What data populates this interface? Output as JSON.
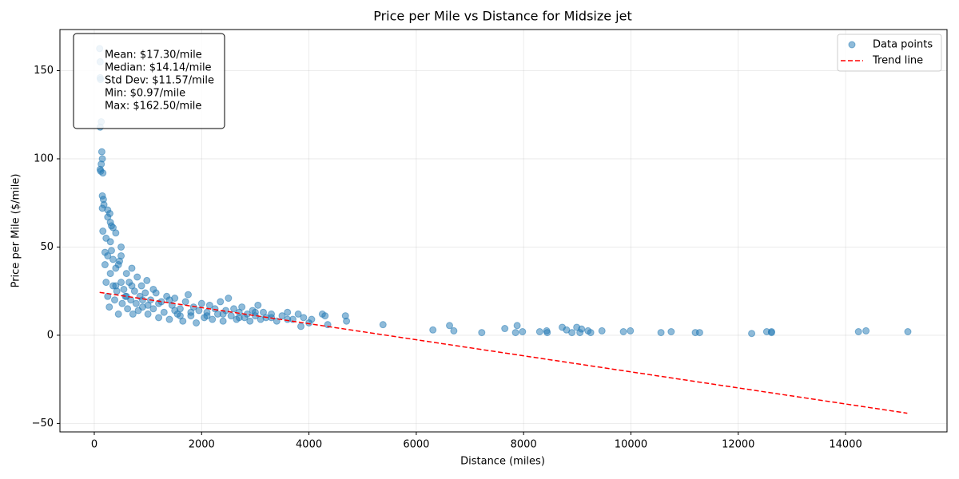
{
  "chart_data": {
    "type": "scatter",
    "title": "Price per Mile vs Distance for Midsize jet",
    "x_label": "Distance (miles)",
    "y_label": "Price per Mile ($/mile)",
    "xlim": [
      -640,
      15890
    ],
    "ylim": [
      -54.8,
      173.3
    ],
    "xticks": [
      0,
      2000,
      4000,
      6000,
      8000,
      10000,
      12000,
      14000
    ],
    "yticks": [
      {
        "value": -50,
        "label": "−50"
      },
      0,
      50,
      100,
      150
    ],
    "grid": true,
    "legend": "upper right",
    "stats_box": [
      "Mean: $17.30/mile",
      "Median: $14.14/mile",
      "Std Dev: $11.57/mile",
      "Min: $0.97/mile",
      "Max: $162.50/mile"
    ],
    "series": [
      {
        "name": "Data points",
        "type": "scatter",
        "color": "#1f77b4",
        "x": [
          100,
          110,
          110,
          115,
          130,
          110,
          140,
          150,
          130,
          110,
          120,
          160,
          150,
          170,
          150,
          180,
          250,
          290,
          250,
          300,
          320,
          350,
          160,
          400,
          220,
          300,
          500,
          200,
          250,
          350,
          450,
          200,
          220,
          250,
          280,
          300,
          320,
          350,
          380,
          400,
          420,
          450,
          470,
          500,
          520,
          550,
          580,
          600,
          620,
          650,
          680,
          700,
          720,
          750,
          780,
          800,
          820,
          850,
          880,
          900,
          950,
          980,
          1000,
          1050,
          1100,
          1150,
          1200,
          1250,
          1300,
          1350,
          1400,
          1450,
          1500,
          1550,
          1600,
          1650,
          1700,
          1750,
          1800,
          1850,
          1900,
          1950,
          2000,
          2050,
          2100,
          2150,
          2200,
          2250,
          2300,
          2350,
          2400,
          2450,
          2500,
          2550,
          2600,
          2650,
          2700,
          2750,
          2800,
          2850,
          2900,
          2950,
          3000,
          3050,
          3100,
          3150,
          3200,
          3300,
          3400,
          3500,
          3600,
          3700,
          3800,
          3850,
          3900,
          4000,
          4050,
          4250,
          4300,
          4350,
          4680,
          4700,
          400,
          600,
          900,
          1200,
          1500,
          1800,
          2100,
          2400,
          2700,
          3000,
          3300,
          3600,
          500,
          700,
          1100,
          1400,
          1600,
          1000,
          5380,
          6310,
          6620,
          6700,
          7220,
          7650,
          7850,
          7880,
          7980,
          8300,
          8430,
          8440,
          8720,
          8800,
          8900,
          8990,
          9050,
          9080,
          9200,
          9250,
          9460,
          9860,
          9990,
          10560,
          10750,
          11200,
          11280,
          12250,
          12530,
          12620,
          12620,
          14240,
          14380,
          15160
        ],
        "values": [
          162.5,
          155,
          146,
          145,
          121,
          118,
          104,
          100,
          97,
          94,
          93,
          92,
          79,
          77,
          72,
          74,
          71,
          69,
          67,
          64,
          62,
          61,
          59,
          58,
          55,
          53,
          50,
          47,
          45,
          43,
          40,
          40,
          30,
          22,
          16,
          35,
          48,
          28,
          20,
          38,
          25,
          12,
          42,
          30,
          18,
          26,
          22,
          35,
          15,
          30,
          20,
          38,
          12,
          25,
          18,
          33,
          14,
          22,
          28,
          16,
          24,
          31,
          12,
          20,
          15,
          24,
          10,
          19,
          13,
          22,
          9,
          17,
          21,
          12,
          15,
          8,
          19,
          23,
          11,
          16,
          7,
          14,
          18,
          10,
          13,
          17,
          9,
          15,
          12,
          19,
          8,
          14,
          21,
          11,
          15,
          9,
          13,
          16,
          10,
          12,
          8,
          14,
          11,
          17,
          9,
          13,
          10,
          12,
          8,
          11,
          13,
          9,
          12,
          5,
          10,
          7,
          9,
          12,
          11,
          6,
          11,
          8,
          28,
          22,
          20,
          18,
          14,
          13,
          11,
          12,
          10,
          13,
          10,
          9,
          45,
          28,
          26,
          20,
          11,
          17,
          6,
          3,
          5.5,
          2.5,
          1.5,
          3.8,
          1.5,
          5.5,
          2,
          2,
          2.5,
          1.5,
          4.5,
          3,
          1.5,
          4.5,
          1.5,
          3.5,
          2.5,
          1.5,
          2.5,
          2,
          2.5,
          1.5,
          2,
          1.5,
          1.5,
          1,
          2,
          2,
          1.5,
          2,
          2.5,
          2
        ]
      },
      {
        "name": "Trend line",
        "type": "line",
        "color": "#ff0000",
        "x": [
          100,
          15150
        ],
        "values": [
          24.3,
          -44.2
        ]
      }
    ]
  }
}
